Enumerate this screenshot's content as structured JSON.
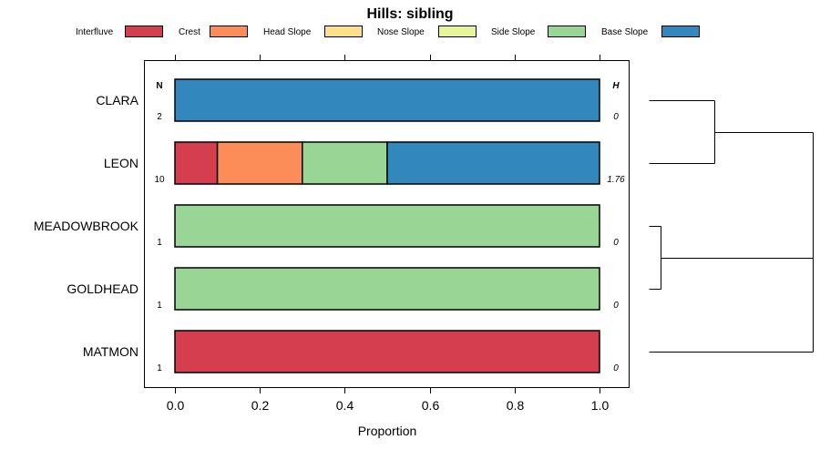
{
  "chart_data": {
    "type": "bar",
    "orientation": "horizontal",
    "stacked": true,
    "title": "Hills: sibling",
    "xlabel": "Proportion",
    "ylabel": "",
    "xlim": [
      0,
      1
    ],
    "x_ticks": [
      "0.0",
      "0.2",
      "0.4",
      "0.6",
      "0.8",
      "1.0"
    ],
    "x_tick_values": [
      0,
      0.2,
      0.4,
      0.6,
      0.8,
      1.0
    ],
    "legend": [
      {
        "name": "Interfluve",
        "color": "#D53E4F"
      },
      {
        "name": "Crest",
        "color": "#FC8D59"
      },
      {
        "name": "Head Slope",
        "color": "#FEE08B"
      },
      {
        "name": "Nose Slope",
        "color": "#E6F598"
      },
      {
        "name": "Side Slope",
        "color": "#99D594"
      },
      {
        "name": "Base Slope",
        "color": "#3288BD"
      }
    ],
    "n_header": "N",
    "h_header": "H",
    "categories": [
      "CLARA",
      "LEON",
      "MEADOWBROOK",
      "GOLDHEAD",
      "MATMON"
    ],
    "n_values": [
      "2",
      "10",
      "1",
      "1",
      "1"
    ],
    "h_values": [
      "0",
      "1.76",
      "0",
      "0",
      "0"
    ],
    "series": [
      {
        "name": "Interfluve",
        "values": [
          0,
          0.1,
          0,
          0,
          1.0
        ]
      },
      {
        "name": "Crest",
        "values": [
          0,
          0.2,
          0,
          0,
          0
        ]
      },
      {
        "name": "Head Slope",
        "values": [
          0,
          0,
          0,
          0,
          0
        ]
      },
      {
        "name": "Nose Slope",
        "values": [
          0,
          0,
          0,
          0,
          0
        ]
      },
      {
        "name": "Side Slope",
        "values": [
          0,
          0.2,
          1.0,
          1.0,
          0
        ]
      },
      {
        "name": "Base Slope",
        "values": [
          1.0,
          0.5,
          0,
          0,
          0
        ]
      }
    ],
    "dendrogram": {
      "merges": [
        [
          "CLARA",
          "LEON"
        ],
        [
          "MEADOWBROOK",
          "GOLDHEAD"
        ],
        [
          "MEADOWBROOK+GOLDHEAD",
          "MATMON"
        ],
        [
          "CLARA+LEON",
          "MEADOWBROOK+GOLDHEAD+MATMON"
        ]
      ]
    }
  }
}
